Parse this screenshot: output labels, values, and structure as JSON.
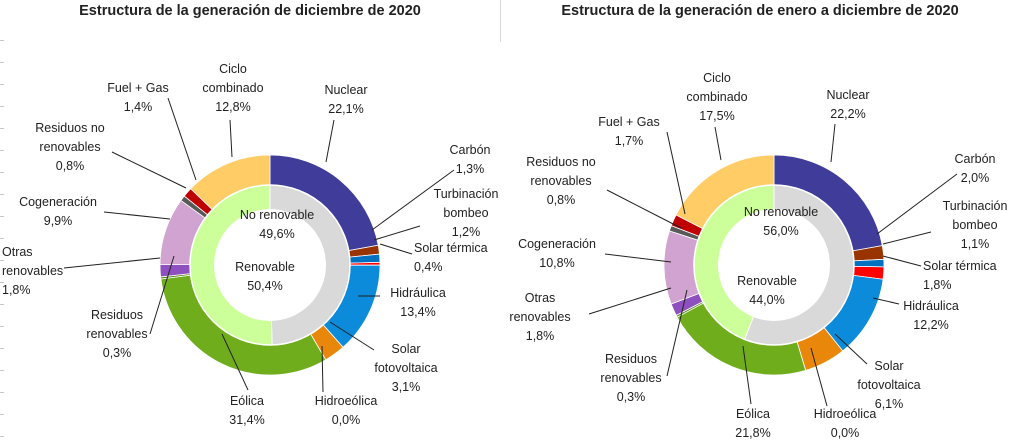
{
  "chart_data": [
    {
      "type": "donut",
      "title": "Estructura de la generación de diciembre de 2020",
      "inner": [
        {
          "label": "No renovable",
          "value": 49.6,
          "value_text": "49,6%",
          "color": "#d9d9d9"
        },
        {
          "label": "Renovable",
          "value": 50.4,
          "value_text": "50,4%",
          "color": "#ccff99"
        }
      ],
      "outer": [
        {
          "label": "Nuclear",
          "value": 22.1,
          "value_text": "22,1%",
          "color": "#3f3d99"
        },
        {
          "label": "Carbón",
          "value": 1.3,
          "value_text": "1,3%",
          "color": "#993300"
        },
        {
          "label": "Turbinación bombeo",
          "value": 1.2,
          "value_text": "1,2%",
          "color": "#0070c0"
        },
        {
          "label": "Solar térmica",
          "value": 0.4,
          "value_text": "0,4%",
          "color": "#ff0000"
        },
        {
          "label": "Hidráulica",
          "value": 13.4,
          "value_text": "13,4%",
          "color": "#0b8bd9"
        },
        {
          "label": "Solar fotovoltaica",
          "value": 3.1,
          "value_text": "3,1%",
          "color": "#e8870a"
        },
        {
          "label": "Hidroeólica",
          "value": 0.0,
          "value_text": "0,0%",
          "color": "#2e75b6"
        },
        {
          "label": "Eólica",
          "value": 31.4,
          "value_text": "31,4%",
          "color": "#70ad1c"
        },
        {
          "label": "Residuos renovables",
          "value": 0.3,
          "value_text": "0,3%",
          "color": "#5a8a1e"
        },
        {
          "label": "Otras renovables",
          "value": 1.8,
          "value_text": "1,8%",
          "color": "#8e4fbf"
        },
        {
          "label": "Cogeneración",
          "value": 9.9,
          "value_text": "9,9%",
          "color": "#d1a3d1"
        },
        {
          "label": "Residuos no renovables",
          "value": 0.8,
          "value_text": "0,8%",
          "color": "#595959"
        },
        {
          "label": "Fuel + Gas",
          "value": 1.4,
          "value_text": "1,4%",
          "color": "#c00000"
        },
        {
          "label": "Ciclo combinado",
          "value": 12.8,
          "value_text": "12,8%",
          "color": "#ffcc66"
        }
      ]
    },
    {
      "type": "donut",
      "title": "Estructura de la generación de enero a diciembre de 2020",
      "inner": [
        {
          "label": "No renovable",
          "value": 56.0,
          "value_text": "56,0%",
          "color": "#d9d9d9"
        },
        {
          "label": "Renovable",
          "value": 44.0,
          "value_text": "44,0%",
          "color": "#ccff99"
        }
      ],
      "outer": [
        {
          "label": "Nuclear",
          "value": 22.2,
          "value_text": "22,2%",
          "color": "#3f3d99"
        },
        {
          "label": "Carbón",
          "value": 2.0,
          "value_text": "2,0%",
          "color": "#993300"
        },
        {
          "label": "Turbinación bombeo",
          "value": 1.1,
          "value_text": "1,1%",
          "color": "#0070c0"
        },
        {
          "label": "Solar térmica",
          "value": 1.8,
          "value_text": "1,8%",
          "color": "#ff0000"
        },
        {
          "label": "Hidráulica",
          "value": 12.2,
          "value_text": "12,2%",
          "color": "#0b8bd9"
        },
        {
          "label": "Solar fotovoltaica",
          "value": 6.1,
          "value_text": "6,1%",
          "color": "#e8870a"
        },
        {
          "label": "Hidroeólica",
          "value": 0.0,
          "value_text": "0,0%",
          "color": "#2e75b6"
        },
        {
          "label": "Eólica",
          "value": 21.8,
          "value_text": "21,8%",
          "color": "#70ad1c"
        },
        {
          "label": "Residuos renovables",
          "value": 0.3,
          "value_text": "0,3%",
          "color": "#5a8a1e"
        },
        {
          "label": "Otras renovables",
          "value": 1.8,
          "value_text": "1,8%",
          "color": "#8e4fbf"
        },
        {
          "label": "Cogeneración",
          "value": 10.8,
          "value_text": "10,8%",
          "color": "#d1a3d1"
        },
        {
          "label": "Residuos no renovables",
          "value": 0.8,
          "value_text": "0,8%",
          "color": "#595959"
        },
        {
          "label": "Fuel + Gas",
          "value": 1.7,
          "value_text": "1,7%",
          "color": "#c00000"
        },
        {
          "label": "Ciclo combinado",
          "value": 17.5,
          "value_text": "17,5%",
          "color": "#ffcc66"
        }
      ]
    }
  ]
}
